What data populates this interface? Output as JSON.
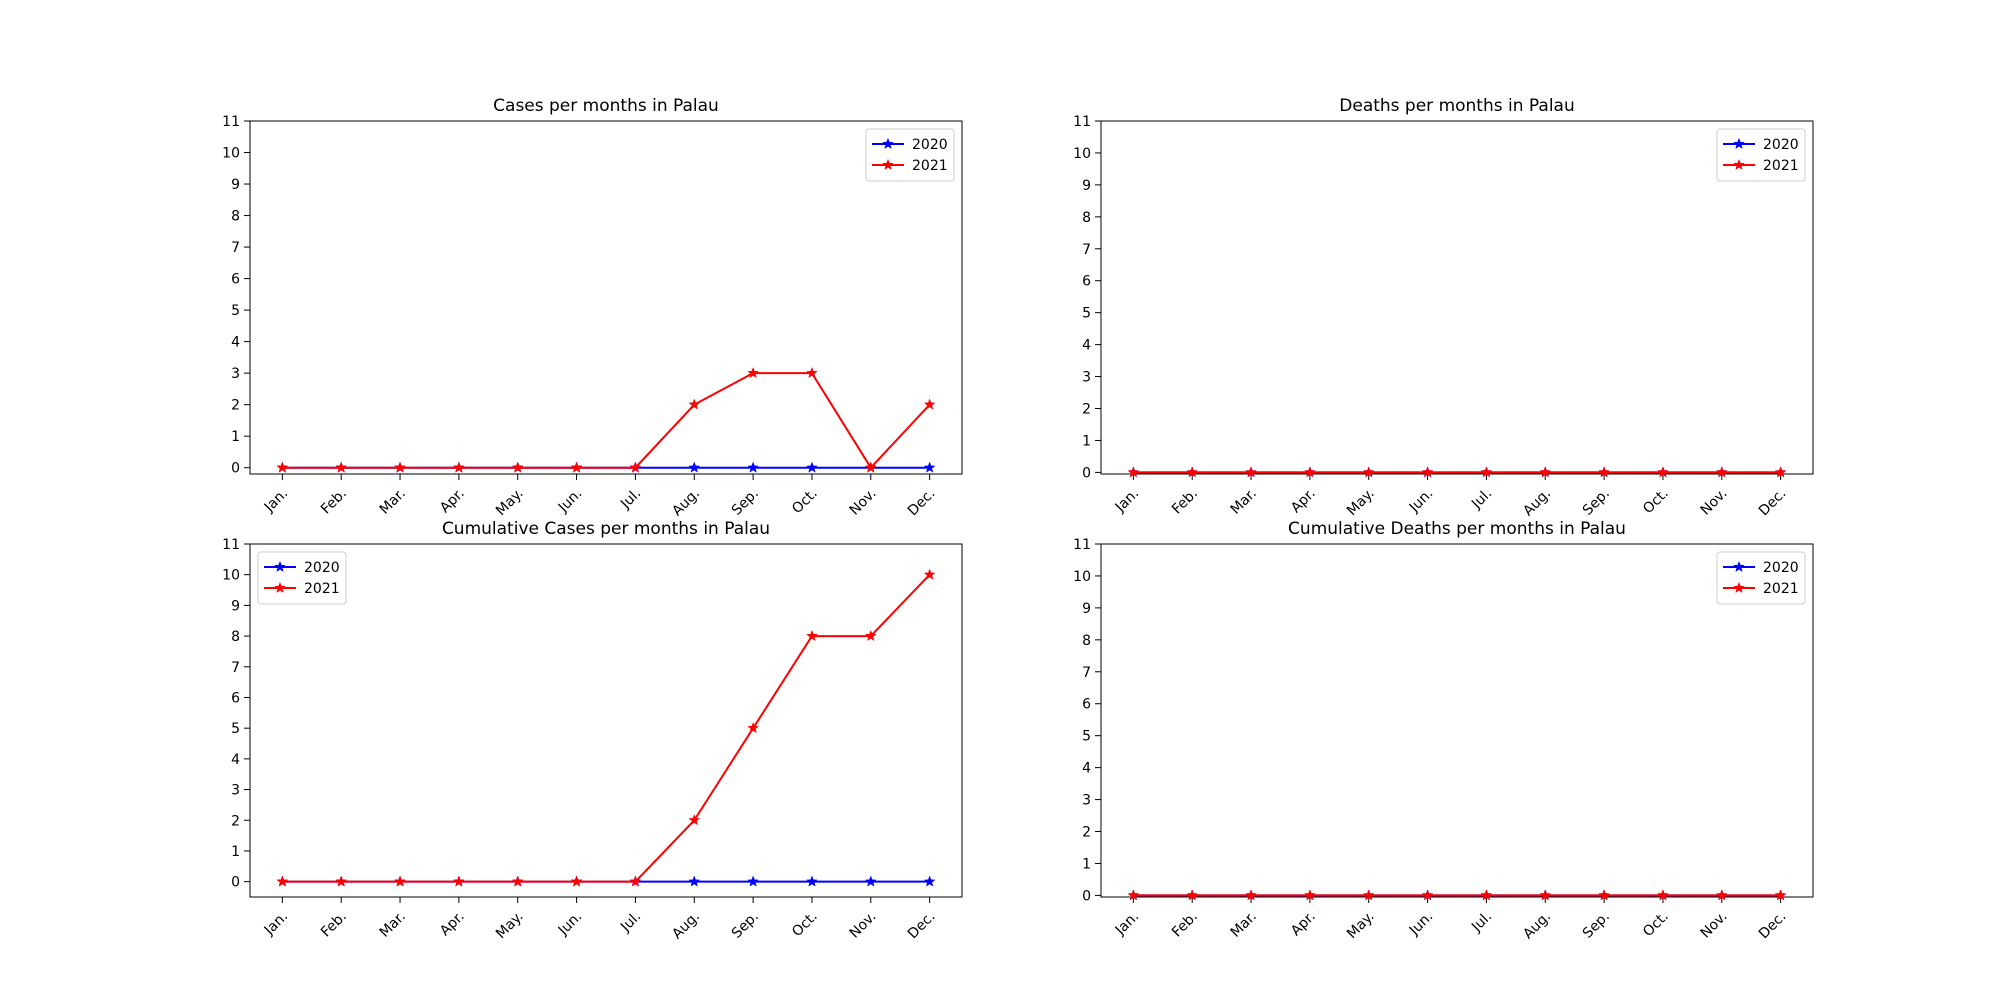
{
  "chart_data": [
    {
      "type": "line",
      "title": "Cases per months in Palau",
      "xlabel": "",
      "ylabel": "",
      "categories": [
        "Jan.",
        "Feb.",
        "Mar.",
        "Apr.",
        "May.",
        "Jun.",
        "Jul.",
        "Aug.",
        "Sep.",
        "Oct.",
        "Nov.",
        "Dec."
      ],
      "yticks": [
        "0",
        "1",
        "2",
        "3",
        "4",
        "5",
        "6",
        "7",
        "8",
        "9",
        "10",
        "11"
      ],
      "ylim": [
        -0.2,
        11
      ],
      "grid": false,
      "legend": "upper right",
      "series": [
        {
          "name": "2020",
          "color": "#0000ff",
          "marker": "star",
          "values": [
            0,
            0,
            0,
            0,
            0,
            0,
            0,
            0,
            0,
            0,
            0,
            0
          ]
        },
        {
          "name": "2021",
          "color": "#ff0000",
          "marker": "star",
          "values": [
            0,
            0,
            0,
            0,
            0,
            0,
            0,
            2,
            3,
            3,
            0,
            2
          ]
        }
      ]
    },
    {
      "type": "line",
      "title": "Deaths per months in Palau",
      "xlabel": "",
      "ylabel": "",
      "categories": [
        "Jan.",
        "Feb.",
        "Mar.",
        "Apr.",
        "May.",
        "Jun.",
        "Jul.",
        "Aug.",
        "Sep.",
        "Oct.",
        "Nov.",
        "Dec."
      ],
      "yticks": [
        "0",
        "1",
        "2",
        "3",
        "4",
        "5",
        "6",
        "7",
        "8",
        "9",
        "10",
        "11"
      ],
      "ylim": [
        -0.05,
        11
      ],
      "grid": false,
      "legend": "upper right",
      "series": [
        {
          "name": "2020",
          "color": "#0000ff",
          "marker": "star",
          "values": [
            0,
            0,
            0,
            0,
            0,
            0,
            0,
            0,
            0,
            0,
            0,
            0
          ]
        },
        {
          "name": "2021",
          "color": "#ff0000",
          "marker": "star",
          "values": [
            0,
            0,
            0,
            0,
            0,
            0,
            0,
            0,
            0,
            0,
            0,
            0
          ]
        }
      ]
    },
    {
      "type": "line",
      "title": "Cumulative Cases per months in Palau",
      "xlabel": "",
      "ylabel": "",
      "categories": [
        "Jan.",
        "Feb.",
        "Mar.",
        "Apr.",
        "May.",
        "Jun.",
        "Jul.",
        "Aug.",
        "Sep.",
        "Oct.",
        "Nov.",
        "Dec."
      ],
      "yticks": [
        "0",
        "1",
        "2",
        "3",
        "4",
        "5",
        "6",
        "7",
        "8",
        "9",
        "10",
        "11"
      ],
      "ylim": [
        -0.5,
        11
      ],
      "grid": false,
      "legend": "upper left",
      "series": [
        {
          "name": "2020",
          "color": "#0000ff",
          "marker": "star",
          "values": [
            0,
            0,
            0,
            0,
            0,
            0,
            0,
            0,
            0,
            0,
            0,
            0
          ]
        },
        {
          "name": "2021",
          "color": "#ff0000",
          "marker": "star",
          "values": [
            0,
            0,
            0,
            0,
            0,
            0,
            0,
            2,
            5,
            8,
            8,
            10
          ]
        }
      ]
    },
    {
      "type": "line",
      "title": "Cumulative Deaths per months in Palau",
      "xlabel": "",
      "ylabel": "",
      "categories": [
        "Jan.",
        "Feb.",
        "Mar.",
        "Apr.",
        "May.",
        "Jun.",
        "Jul.",
        "Aug.",
        "Sep.",
        "Oct.",
        "Nov.",
        "Dec."
      ],
      "yticks": [
        "0",
        "1",
        "2",
        "3",
        "4",
        "5",
        "6",
        "7",
        "8",
        "9",
        "10",
        "11"
      ],
      "ylim": [
        -0.05,
        11
      ],
      "grid": false,
      "legend": "upper right",
      "series": [
        {
          "name": "2020",
          "color": "#0000ff",
          "marker": "star",
          "values": [
            0,
            0,
            0,
            0,
            0,
            0,
            0,
            0,
            0,
            0,
            0,
            0
          ]
        },
        {
          "name": "2021",
          "color": "#ff0000",
          "marker": "star",
          "values": [
            0,
            0,
            0,
            0,
            0,
            0,
            0,
            0,
            0,
            0,
            0,
            0
          ]
        }
      ]
    }
  ]
}
